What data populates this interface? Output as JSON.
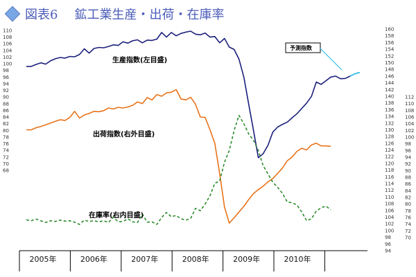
{
  "header": {
    "figure_label": "図表6",
    "title": "鉱工業生産・出荷・在庫率"
  },
  "annotation": {
    "label": "予測指数"
  },
  "chart_data": {
    "type": "line",
    "x_labels": [
      "2005年",
      "2006年",
      "2007年",
      "2008年",
      "2009年",
      "2010年"
    ],
    "axes": {
      "left": {
        "min": 68,
        "max": 110,
        "step": 2
      },
      "right1": {
        "min": 94,
        "max": 160,
        "step": 2
      },
      "right2": {
        "min": 70,
        "max": 112,
        "step": 2
      }
    },
    "series": [
      {
        "name": "生産指数(左目盛)",
        "axis": "left",
        "color": "#1b1f7a",
        "dash": "",
        "values": [
          99.2,
          99.2,
          99.8,
          100.3,
          99.9,
          100.9,
          101.5,
          101.9,
          101.7,
          102.2,
          102.1,
          102.8,
          104.5,
          103.2,
          104.6,
          104.9,
          104.8,
          105.2,
          105.7,
          105.5,
          106.6,
          106.2,
          106.9,
          107.2,
          106.3,
          107.1,
          107.0,
          107.4,
          109.4,
          108.0,
          109.4,
          108.4,
          109.1,
          109.5,
          109.8,
          108.9,
          108.7,
          109.2,
          108.0,
          108.2,
          106.3,
          107.6,
          105.0,
          104.3,
          101.4,
          96.0,
          88.0,
          80.0,
          71.8,
          73.0,
          75.5,
          79.5,
          81.0,
          81.8,
          82.5,
          83.8,
          85.0,
          86.6,
          88.2,
          90.2,
          94.5,
          93.8,
          94.9,
          96.0,
          96.3,
          95.5,
          95.6,
          96.3
        ],
        "forecast": [
          96.3,
          97.0,
          97.4
        ]
      },
      {
        "name": "出荷指数(右外目盛)",
        "axis": "right1",
        "color": "#e8731a",
        "dash": "",
        "values": [
          130.0,
          130.0,
          130.6,
          131.0,
          131.5,
          132.0,
          132.5,
          133.0,
          132.8,
          133.7,
          135.5,
          133.5,
          134.4,
          134.9,
          135.5,
          135.4,
          135.7,
          136.5,
          136.2,
          136.7,
          136.5,
          136.8,
          137.3,
          138.3,
          137.8,
          139.6,
          138.9,
          140.5,
          140.0,
          141.0,
          141.2,
          142.0,
          139.2,
          138.9,
          139.7,
          137.6,
          133.8,
          133.7,
          130.0,
          126.0,
          117.0,
          107.0,
          102.2,
          103.8,
          105.5,
          107.2,
          109.2,
          111.0,
          112.2,
          113.2,
          114.5,
          115.5,
          117.0,
          118.6,
          120.8,
          121.9,
          123.6,
          124.5,
          124.0,
          125.5,
          126.0,
          125.2,
          125.2,
          125.1
        ],
        "start_index": 0
      },
      {
        "name": "在庫率(右内目盛)",
        "axis": "right2",
        "color": "#2e8b2e",
        "dash": "4,3",
        "values": [
          75.3,
          75.0,
          75.5,
          75.0,
          74.5,
          75.0,
          74.8,
          75.2,
          74.9,
          75.0,
          74.6,
          73.9,
          75.2,
          74.8,
          75.0,
          74.7,
          75.0,
          74.5,
          76.1,
          74.7,
          74.8,
          75.6,
          74.7,
          74.5,
          77.0,
          74.6,
          74.7,
          73.9,
          76.0,
          77.5,
          76.2,
          76.6,
          75.6,
          75.2,
          75.7,
          78.7,
          78.0,
          80.0,
          82.5,
          86.2,
          86.9,
          92.5,
          96.0,
          102.0,
          106.5,
          104.0,
          101.0,
          99.0,
          96.0,
          91.5,
          89.0,
          86.5,
          85.0,
          83.2,
          80.6,
          80.4,
          79.7,
          77.6,
          75.0,
          75.6,
          77.9,
          78.9,
          79.4,
          78.3
        ],
        "start_index": 0
      }
    ],
    "labels": {
      "production": "生産指数(左目盛)",
      "shipment": "出荷指数(右外目盛)",
      "inventory": "在庫率(右内目盛)"
    }
  }
}
